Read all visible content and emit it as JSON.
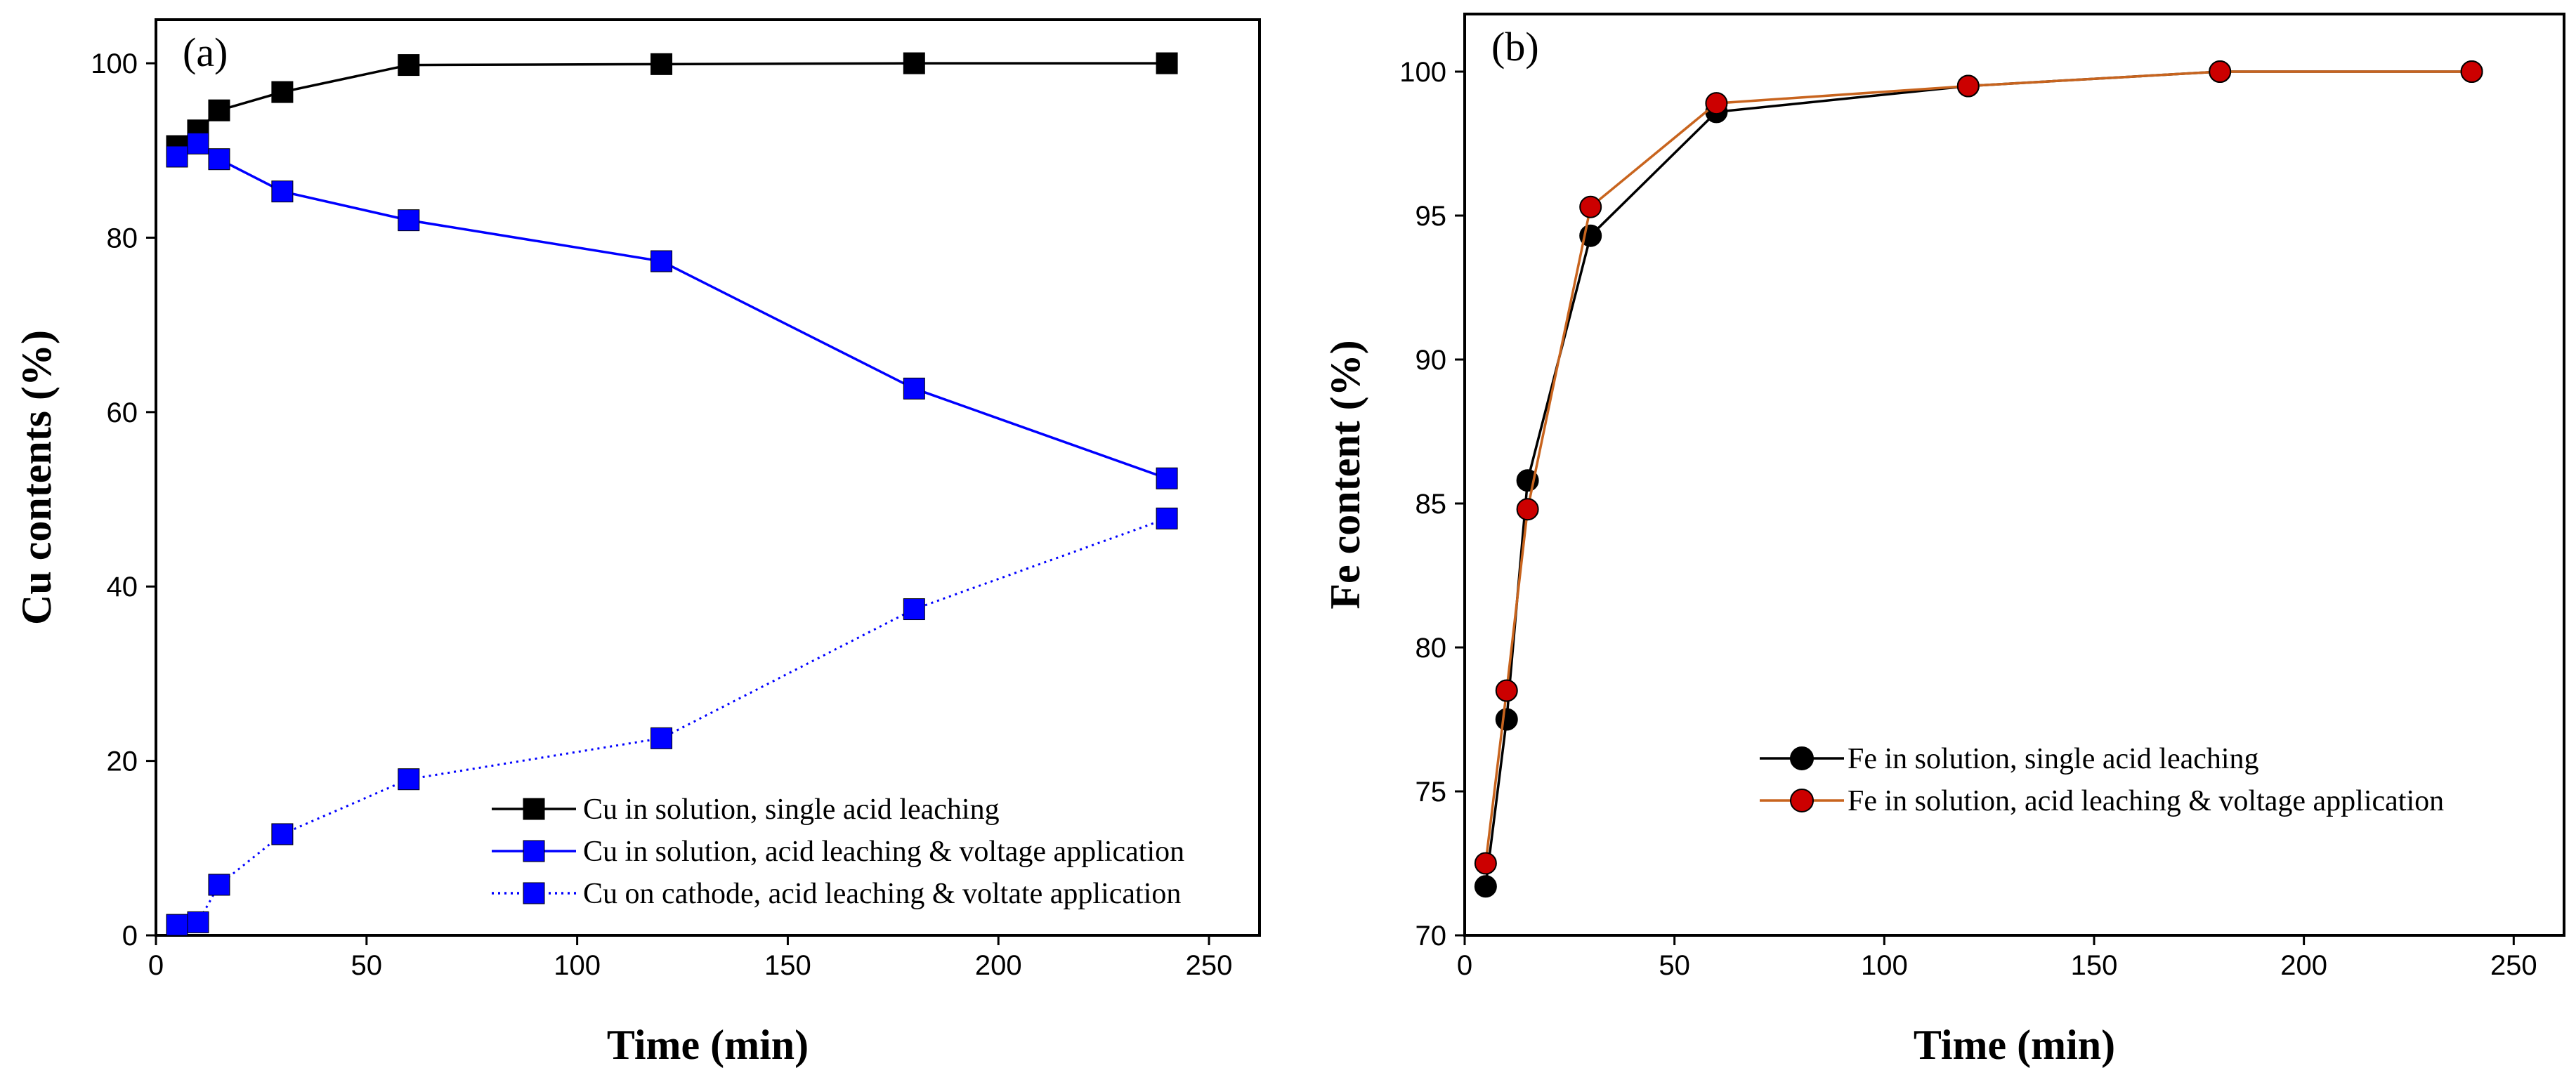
{
  "chart_data": [
    {
      "type": "line",
      "panel_label": "(a)",
      "xlabel": "Time (min)",
      "ylabel": "Cu contents (%)",
      "xlim": [
        0,
        262
      ],
      "ylim": [
        0,
        105
      ],
      "xticks": [
        0,
        50,
        100,
        150,
        200,
        250
      ],
      "yticks": [
        0,
        20,
        40,
        60,
        80,
        100
      ],
      "grid": false,
      "legend_position": "bottom-right",
      "series": [
        {
          "name": "Cu in solution, single acid leaching",
          "color": "#000000",
          "marker": "square",
          "linestyle": "solid",
          "x": [
            5,
            10,
            15,
            30,
            60,
            120,
            180,
            240
          ],
          "values": [
            90.5,
            92.3,
            94.6,
            96.7,
            99.8,
            99.9,
            100,
            100
          ]
        },
        {
          "name": "Cu in solution, acid leaching & voltage application",
          "color": "#0000ff",
          "marker": "square",
          "linestyle": "solid",
          "x": [
            5,
            10,
            15,
            30,
            60,
            120,
            180,
            240
          ],
          "values": [
            89.3,
            90.8,
            89.0,
            85.3,
            82.0,
            77.3,
            62.7,
            52.4
          ]
        },
        {
          "name": "Cu on cathode, acid leaching & voltate application",
          "color": "#0000ff",
          "marker": "square",
          "linestyle": "dotted",
          "x": [
            5,
            10,
            15,
            30,
            60,
            120,
            180,
            240
          ],
          "values": [
            1.2,
            1.5,
            5.8,
            11.6,
            17.9,
            22.6,
            37.4,
            47.8
          ]
        }
      ]
    },
    {
      "type": "line",
      "panel_label": "(b)",
      "xlabel": "Time (min)",
      "ylabel": "Fe content (%)",
      "xlim": [
        0,
        262
      ],
      "ylim": [
        70,
        102
      ],
      "xticks": [
        0,
        50,
        100,
        150,
        200,
        250
      ],
      "yticks": [
        70,
        75,
        80,
        85,
        90,
        95,
        100
      ],
      "grid": false,
      "legend_position": "center-right",
      "series": [
        {
          "name": "Fe in solution, single acid leaching",
          "color": "#000000",
          "line_color": "#000000",
          "marker": "circle",
          "linestyle": "solid",
          "x": [
            5,
            10,
            15,
            30,
            60,
            120,
            180,
            240
          ],
          "values": [
            71.7,
            77.5,
            85.8,
            94.3,
            98.6,
            99.5,
            100,
            100
          ]
        },
        {
          "name": "Fe in solution, acid leaching & voltage application",
          "color": "#cc0000",
          "line_color": "#c8641e",
          "marker": "circle",
          "linestyle": "solid",
          "x": [
            5,
            10,
            15,
            30,
            60,
            120,
            180,
            240
          ],
          "values": [
            72.5,
            78.5,
            84.8,
            95.3,
            98.9,
            99.5,
            100,
            100
          ]
        }
      ]
    }
  ]
}
